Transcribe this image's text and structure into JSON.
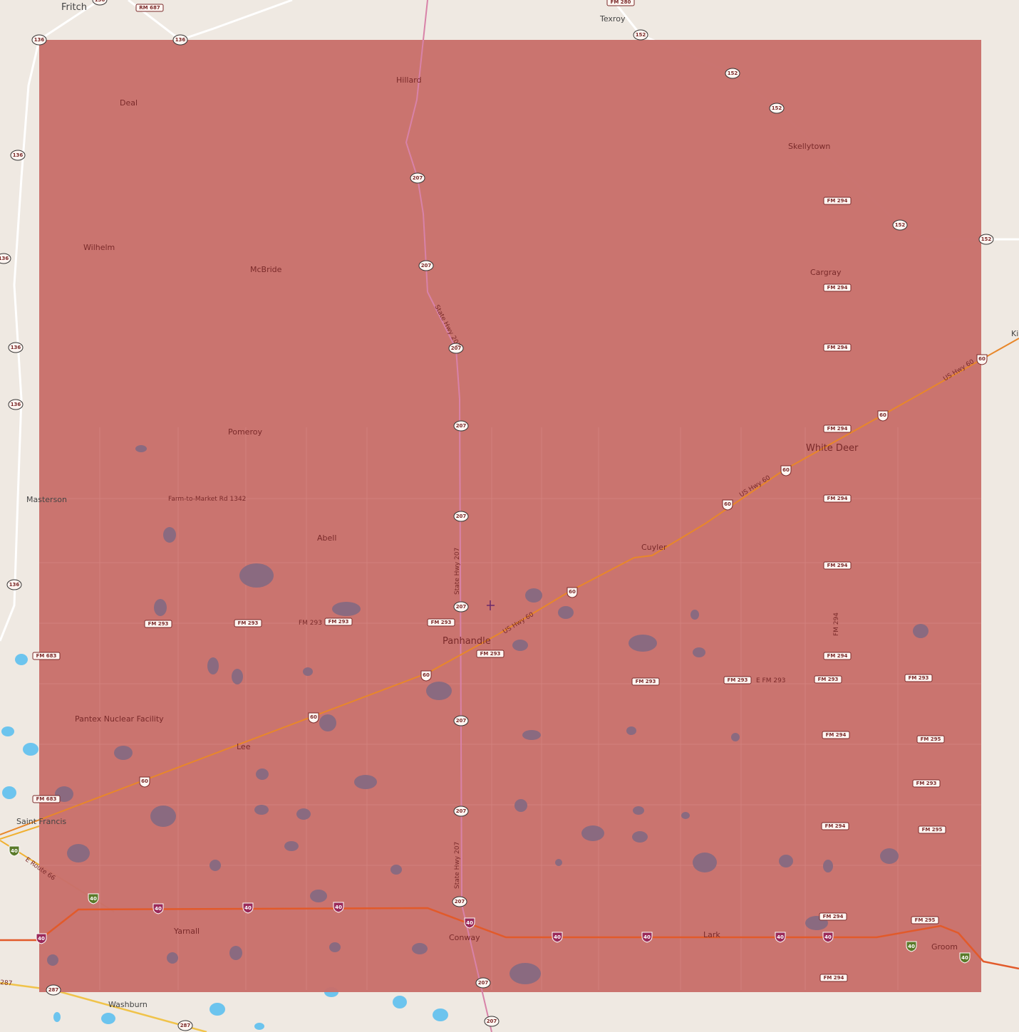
{
  "map": {
    "overlay_color": "#c8706b",
    "base_color": "#efe9e2",
    "water_inside_color": "#8a6a80",
    "water_outside_color": "#6cc4ee",
    "interstate_color": "#e25a2a",
    "us_highway_color": "#e8872a",
    "places": [
      "Fritch",
      "Texroy",
      "Hillard",
      "Deal",
      "Skellytown",
      "Wilhelm",
      "McBride",
      "Cargray",
      "Pomeroy",
      "White Deer",
      "Masterson",
      "Abell",
      "Cuyler",
      "Panhandle",
      "Pantex Nuclear Facility",
      "Lee",
      "Saint Francis",
      "Yarnall",
      "Conway",
      "Lark",
      "Groom",
      "Washburn",
      "Ki"
    ],
    "road_labels": [
      "State Hwy 207",
      "State Hwy 207",
      "State Hwy 207",
      "US Hwy 60",
      "US Hwy 60",
      "US Hwy 60",
      "Farm-to-Market Rd 1342",
      "FM 293",
      "E FM 293",
      "FM 294",
      "E Route 66",
      "287"
    ],
    "shields": {
      "fm": [
        "RM 687",
        "FM 280",
        "FM 294",
        "FM 294",
        "FM 294",
        "FM 294",
        "FM 294",
        "FM 294",
        "FM 294",
        "FM 294",
        "FM 294",
        "FM 294",
        "FM 294",
        "FM 293",
        "FM 293",
        "FM 293",
        "FM 293",
        "FM 293",
        "FM 293",
        "FM 293",
        "FM 293",
        "FM 293",
        "FM 293",
        "FM 683",
        "FM 683",
        "FM 295",
        "FM 295",
        "FM 295"
      ],
      "state": [
        "136",
        "136",
        "136",
        "136",
        "136",
        "136",
        "136",
        "136",
        "152",
        "152",
        "152",
        "152",
        "152",
        "207",
        "207",
        "207",
        "207",
        "207",
        "207",
        "207",
        "207",
        "207",
        "207",
        "207",
        "287",
        "287"
      ],
      "us": [
        "60",
        "60",
        "60",
        "60",
        "60",
        "60",
        "60",
        "60"
      ],
      "interstate": [
        "40",
        "40",
        "40",
        "40",
        "40",
        "40",
        "40",
        "40",
        "40",
        "40",
        "40",
        "40",
        "40"
      ]
    }
  }
}
